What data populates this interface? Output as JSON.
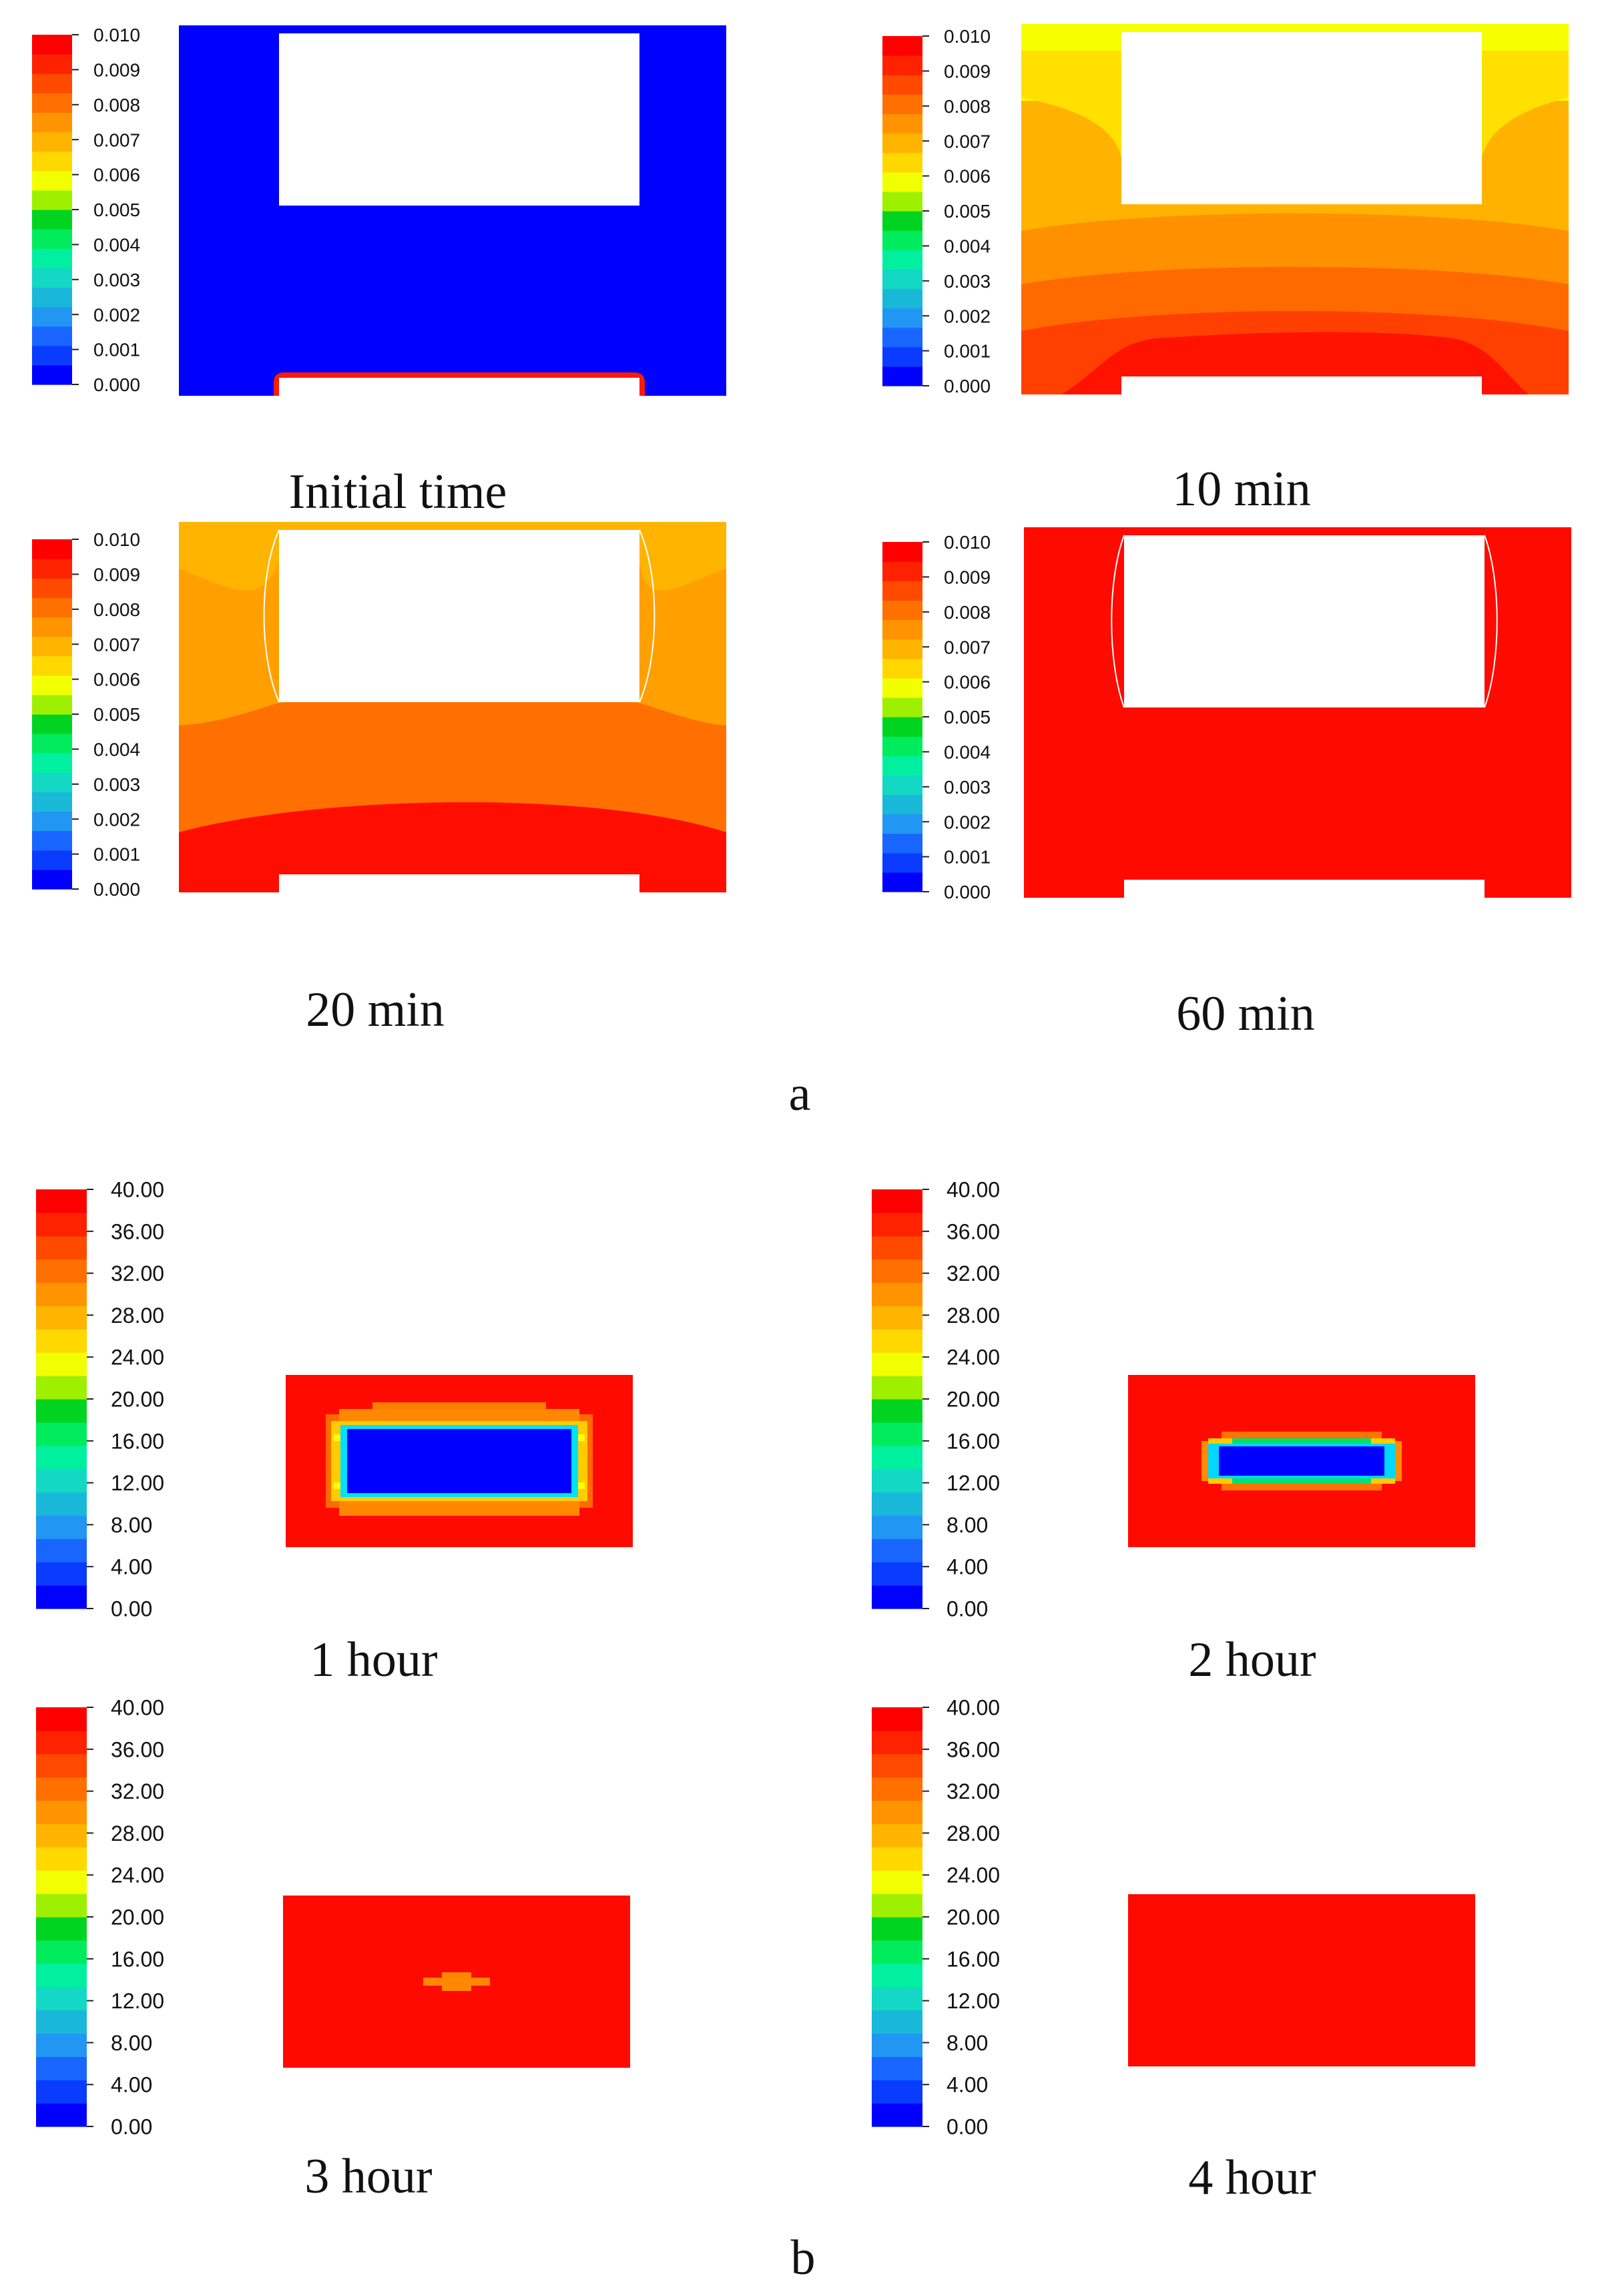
{
  "figure": {
    "part_a_label": "a",
    "part_b_label": "b"
  },
  "colormap": [
    "#0000ff",
    "#0a3cff",
    "#1866ff",
    "#2196f3",
    "#19b8d8",
    "#12d8c4",
    "#00f0a0",
    "#00ec5c",
    "#00d420",
    "#9ff000",
    "#f2ff00",
    "#ffd800",
    "#ffb400",
    "#ff9400",
    "#ff7000",
    "#ff4a00",
    "#ff2200",
    "#ff0000"
  ],
  "part_a": {
    "colorbar_ticks": [
      "0.010",
      "0.009",
      "0.008",
      "0.007",
      "0.006",
      "0.005",
      "0.004",
      "0.003",
      "0.002",
      "0.001",
      "0.000"
    ],
    "panels": [
      {
        "caption": "Initial time",
        "state": "initial"
      },
      {
        "caption": "10 min",
        "state": "10min"
      },
      {
        "caption": "20 min",
        "state": "20min"
      },
      {
        "caption": "60 min",
        "state": "60min"
      }
    ]
  },
  "part_b": {
    "colorbar_ticks": [
      "40.00",
      "36.00",
      "32.00",
      "28.00",
      "24.00",
      "20.00",
      "16.00",
      "12.00",
      "8.00",
      "4.00",
      "0.00"
    ],
    "panels": [
      {
        "caption": "1 hour",
        "state": "1h"
      },
      {
        "caption": "2 hour",
        "state": "2h"
      },
      {
        "caption": "3 hour",
        "state": "3h"
      },
      {
        "caption": "4 hour",
        "state": "4h"
      }
    ]
  }
}
